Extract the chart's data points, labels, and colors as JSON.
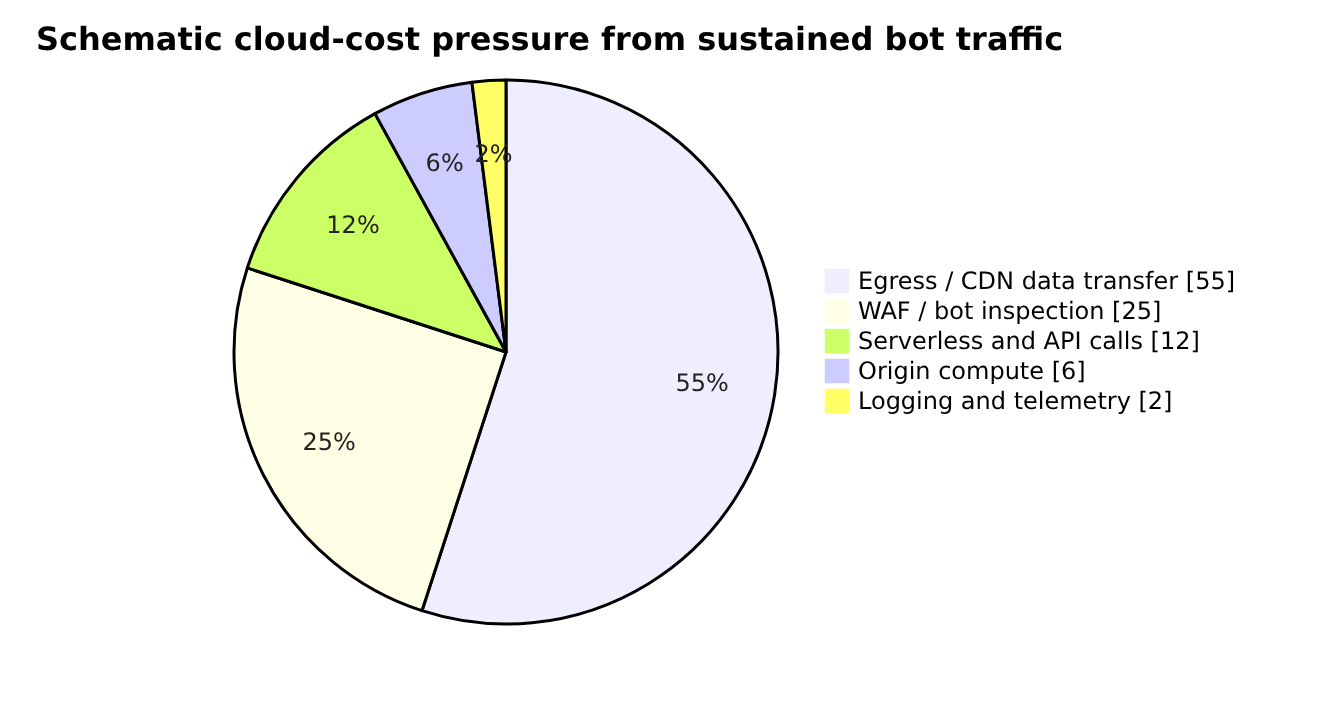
{
  "chart_data": {
    "type": "pie",
    "title": "Schematic cloud-cost pressure from sustained bot traffic",
    "categories": [
      "Egress / CDN data transfer [55]",
      "WAF / bot inspection [25]",
      "Serverless and API calls [12]",
      "Origin compute [6]",
      "Logging and telemetry [2]"
    ],
    "values": [
      55,
      25,
      12,
      6,
      2
    ],
    "colors": [
      "#eeeeff",
      "#ffffe6",
      "#ccff66",
      "#ccccff",
      "#ffff66"
    ],
    "value_labels": [
      "55%",
      "25%",
      "12%",
      "6%",
      "2%"
    ],
    "legend": "right"
  }
}
